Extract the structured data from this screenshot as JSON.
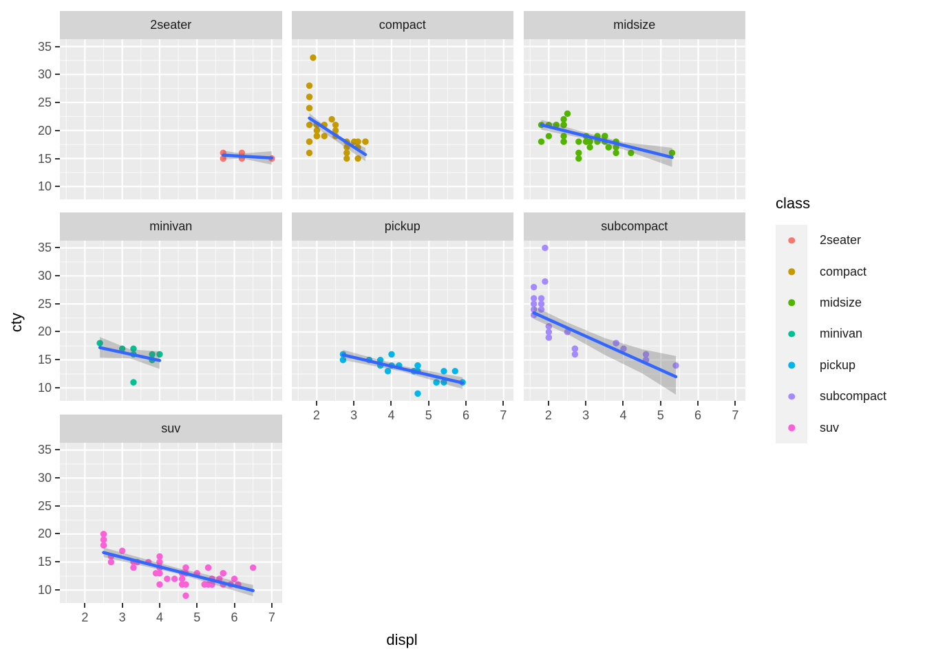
{
  "chart_data": {
    "type": "scatter",
    "title": "",
    "xlabel": "displ",
    "ylabel": "cty",
    "x_ticks": [
      2,
      3,
      4,
      5,
      6,
      7
    ],
    "y_ticks": [
      35,
      30,
      25,
      20,
      15,
      10
    ],
    "x_minor_ticks": [
      1.5,
      2.5,
      3.5,
      4.5,
      5.5,
      6.5
    ],
    "y_minor_ticks": [
      12.5,
      17.5,
      22.5,
      27.5,
      32.5
    ],
    "xlim": [
      1.33,
      7.27
    ],
    "ylim": [
      7.7,
      36.3
    ],
    "grid": "major+minor",
    "panel_background": "#ebebeb",
    "strip_background": "#d5d5d5",
    "smooth_line_color": "#3366ff",
    "ribbon_color": "rgba(105,105,105,0.32)",
    "legend": {
      "title": "class",
      "position": "right"
    },
    "facets": [
      {
        "label": "2seater",
        "color": "#F8766D",
        "points": [
          [
            5.7,
            16
          ],
          [
            5.7,
            15
          ],
          [
            6.2,
            16
          ],
          [
            6.2,
            15
          ],
          [
            7.0,
            15
          ]
        ],
        "line": {
          "x1": 5.7,
          "y1": 15.6,
          "x2": 7.0,
          "y2": 15.1
        },
        "ribbon": [
          [
            5.7,
            16.4
          ],
          [
            6.2,
            15.9
          ],
          [
            7.0,
            16.3
          ],
          [
            7.0,
            13.9
          ],
          [
            6.2,
            15.0
          ],
          [
            5.7,
            14.8
          ]
        ]
      },
      {
        "label": "compact",
        "color": "#C49A00",
        "points": [
          [
            1.8,
            18
          ],
          [
            1.8,
            21
          ],
          [
            2.0,
            20
          ],
          [
            2.0,
            21
          ],
          [
            2.8,
            16
          ],
          [
            2.8,
            18
          ],
          [
            3.1,
            18
          ],
          [
            1.8,
            18
          ],
          [
            1.8,
            16
          ],
          [
            2.0,
            20
          ],
          [
            2.0,
            19
          ],
          [
            2.8,
            15
          ],
          [
            2.8,
            17
          ],
          [
            3.1,
            17
          ],
          [
            3.1,
            15
          ],
          [
            2.2,
            21
          ],
          [
            2.2,
            19
          ],
          [
            2.5,
            20
          ],
          [
            2.5,
            19
          ],
          [
            1.8,
            26
          ],
          [
            1.8,
            28
          ],
          [
            1.8,
            26
          ],
          [
            1.8,
            24
          ],
          [
            1.8,
            24
          ],
          [
            2.0,
            21
          ],
          [
            2.0,
            19
          ],
          [
            2.0,
            21
          ],
          [
            2.8,
            16
          ],
          [
            1.9,
            33
          ],
          [
            2.0,
            21
          ],
          [
            2.0,
            19
          ],
          [
            2.0,
            21
          ],
          [
            2.5,
            21
          ],
          [
            2.2,
            21
          ],
          [
            2.4,
            22
          ],
          [
            3.0,
            18
          ],
          [
            3.3,
            18
          ],
          [
            3.3,
            18
          ]
        ],
        "line": {
          "x1": 1.8,
          "y1": 22.2,
          "x2": 3.3,
          "y2": 15.7
        },
        "ribbon": [
          [
            1.8,
            23.1
          ],
          [
            2.5,
            19.2
          ],
          [
            3.3,
            16.9
          ],
          [
            3.3,
            14.5
          ],
          [
            2.5,
            18.2
          ],
          [
            1.8,
            21.3
          ]
        ]
      },
      {
        "label": "midsize",
        "color": "#53B400",
        "points": [
          [
            1.8,
            21
          ],
          [
            1.8,
            18
          ],
          [
            2.0,
            19
          ],
          [
            2.0,
            21
          ],
          [
            2.8,
            16
          ],
          [
            2.8,
            18
          ],
          [
            3.6,
            17
          ],
          [
            2.8,
            15
          ],
          [
            3.1,
            17
          ],
          [
            4.2,
            16
          ],
          [
            2.4,
            19
          ],
          [
            2.4,
            22
          ],
          [
            3.1,
            18
          ],
          [
            3.5,
            18
          ],
          [
            3.6,
            17
          ],
          [
            2.4,
            18
          ],
          [
            2.4,
            18
          ],
          [
            2.4,
            21
          ],
          [
            3.3,
            19
          ],
          [
            3.3,
            18
          ],
          [
            2.4,
            21
          ],
          [
            2.5,
            23
          ],
          [
            2.5,
            23
          ],
          [
            3.5,
            19
          ],
          [
            3.5,
            19
          ],
          [
            3.0,
            18
          ],
          [
            3.0,
            19
          ],
          [
            3.5,
            19
          ],
          [
            3.1,
            18
          ],
          [
            3.8,
            17
          ],
          [
            3.8,
            16
          ],
          [
            3.8,
            18
          ],
          [
            5.3,
            16
          ],
          [
            2.2,
            21
          ],
          [
            2.2,
            21
          ],
          [
            2.4,
            21
          ],
          [
            2.4,
            21
          ],
          [
            3.0,
            18
          ],
          [
            3.0,
            18
          ],
          [
            3.5,
            19
          ]
        ],
        "line": {
          "x1": 1.8,
          "y1": 21.0,
          "x2": 5.3,
          "y2": 15.2
        },
        "ribbon": [
          [
            1.8,
            21.9
          ],
          [
            3.0,
            19.6
          ],
          [
            4.0,
            17.9
          ],
          [
            5.3,
            16.9
          ],
          [
            5.3,
            13.5
          ],
          [
            4.0,
            16.6
          ],
          [
            3.0,
            18.5
          ],
          [
            1.8,
            20.1
          ]
        ]
      },
      {
        "label": "minivan",
        "color": "#00C094",
        "points": [
          [
            2.4,
            18
          ],
          [
            3.0,
            17
          ],
          [
            3.3,
            17
          ],
          [
            3.3,
            16
          ],
          [
            3.3,
            11
          ],
          [
            3.8,
            15
          ],
          [
            3.8,
            15
          ],
          [
            3.8,
            16
          ],
          [
            4.0,
            16
          ]
        ],
        "line": {
          "x1": 2.4,
          "y1": 17.2,
          "x2": 4.0,
          "y2": 14.9
        },
        "ribbon": [
          [
            2.4,
            19.1
          ],
          [
            3.2,
            16.9
          ],
          [
            4.0,
            16.5
          ],
          [
            4.0,
            13.4
          ],
          [
            3.2,
            15.3
          ],
          [
            2.4,
            15.4
          ]
        ]
      },
      {
        "label": "pickup",
        "color": "#00B6EB",
        "points": [
          [
            3.7,
            15
          ],
          [
            3.7,
            14
          ],
          [
            3.9,
            13
          ],
          [
            3.9,
            13
          ],
          [
            4.7,
            14
          ],
          [
            4.7,
            14
          ],
          [
            4.7,
            9
          ],
          [
            5.2,
            11
          ],
          [
            5.2,
            11
          ],
          [
            4.7,
            13
          ],
          [
            4.7,
            13
          ],
          [
            5.7,
            13
          ],
          [
            5.9,
            11
          ],
          [
            4.2,
            14
          ],
          [
            4.2,
            14
          ],
          [
            4.6,
            13
          ],
          [
            4.6,
            13
          ],
          [
            4.6,
            13
          ],
          [
            5.4,
            13
          ],
          [
            5.4,
            11
          ],
          [
            2.7,
            15
          ],
          [
            2.7,
            16
          ],
          [
            2.7,
            15
          ],
          [
            3.4,
            15
          ],
          [
            3.4,
            15
          ],
          [
            4.0,
            16
          ],
          [
            4.0,
            14
          ]
        ],
        "line": {
          "x1": 2.7,
          "y1": 15.9,
          "x2": 5.9,
          "y2": 10.9
        },
        "ribbon": [
          [
            2.7,
            16.8
          ],
          [
            4.3,
            13.9
          ],
          [
            5.9,
            11.9
          ],
          [
            5.9,
            9.8
          ],
          [
            4.3,
            12.9
          ],
          [
            2.7,
            15.0
          ]
        ]
      },
      {
        "label": "subcompact",
        "color": "#A58AFF",
        "points": [
          [
            1.6,
            28
          ],
          [
            1.6,
            25
          ],
          [
            1.6,
            23
          ],
          [
            1.6,
            24
          ],
          [
            1.6,
            26
          ],
          [
            1.8,
            26
          ],
          [
            1.8,
            25
          ],
          [
            1.8,
            24
          ],
          [
            2.0,
            21
          ],
          [
            1.9,
            35
          ],
          [
            1.9,
            29
          ],
          [
            2.0,
            19
          ],
          [
            2.0,
            21
          ],
          [
            2.5,
            20
          ],
          [
            2.5,
            20
          ],
          [
            2.0,
            19
          ],
          [
            2.0,
            19
          ],
          [
            2.0,
            20
          ],
          [
            2.7,
            17
          ],
          [
            2.7,
            16
          ],
          [
            2.7,
            17
          ],
          [
            3.8,
            18
          ],
          [
            3.8,
            18
          ],
          [
            4.0,
            17
          ],
          [
            4.6,
            15
          ],
          [
            4.6,
            15
          ],
          [
            4.6,
            16
          ],
          [
            4.6,
            15
          ],
          [
            5.4,
            14
          ]
        ],
        "line": {
          "x1": 1.6,
          "y1": 23.4,
          "x2": 5.4,
          "y2": 12.0
        },
        "ribbon": [
          [
            1.6,
            24.6
          ],
          [
            2.5,
            21.7
          ],
          [
            3.5,
            18.9
          ],
          [
            4.5,
            16.9
          ],
          [
            5.4,
            15.7
          ],
          [
            5.4,
            8.8
          ],
          [
            4.5,
            12.6
          ],
          [
            3.5,
            15.9
          ],
          [
            2.5,
            19.6
          ],
          [
            1.6,
            22.3
          ]
        ]
      },
      {
        "label": "suv",
        "color": "#FB61D7",
        "points": [
          [
            5.3,
            14
          ],
          [
            5.3,
            11
          ],
          [
            5.3,
            14
          ],
          [
            5.7,
            13
          ],
          [
            6.0,
            12
          ],
          [
            5.3,
            14
          ],
          [
            5.3,
            11
          ],
          [
            5.7,
            11
          ],
          [
            6.5,
            14
          ],
          [
            3.9,
            13
          ],
          [
            4.7,
            13
          ],
          [
            4.7,
            9
          ],
          [
            4.7,
            13
          ],
          [
            5.2,
            11
          ],
          [
            5.9,
            11
          ],
          [
            4.6,
            11
          ],
          [
            5.4,
            11
          ],
          [
            5.4,
            12
          ],
          [
            4.0,
            15
          ],
          [
            4.0,
            13
          ],
          [
            4.0,
            13
          ],
          [
            4.0,
            14
          ],
          [
            4.6,
            13
          ],
          [
            5.0,
            13
          ],
          [
            3.0,
            17
          ],
          [
            3.7,
            15
          ],
          [
            4.0,
            15
          ],
          [
            4.7,
            14
          ],
          [
            4.7,
            14
          ],
          [
            5.7,
            13
          ],
          [
            6.1,
            11
          ],
          [
            4.0,
            11
          ],
          [
            4.2,
            12
          ],
          [
            4.4,
            12
          ],
          [
            4.6,
            12
          ],
          [
            5.4,
            11
          ],
          [
            5.4,
            11
          ],
          [
            5.4,
            12
          ],
          [
            4.0,
            14
          ],
          [
            4.0,
            13
          ],
          [
            4.6,
            13
          ],
          [
            5.0,
            13
          ],
          [
            3.3,
            14
          ],
          [
            3.3,
            15
          ],
          [
            4.0,
            14
          ],
          [
            5.6,
            12
          ],
          [
            2.5,
            18
          ],
          [
            2.5,
            18
          ],
          [
            2.5,
            20
          ],
          [
            2.5,
            19
          ],
          [
            2.5,
            20
          ],
          [
            2.5,
            19
          ],
          [
            2.7,
            15
          ],
          [
            2.7,
            16
          ],
          [
            3.4,
            15
          ],
          [
            3.4,
            15
          ],
          [
            4.0,
            16
          ],
          [
            4.7,
            14
          ],
          [
            4.7,
            11
          ],
          [
            5.7,
            13
          ]
        ],
        "line": {
          "x1": 2.5,
          "y1": 16.7,
          "x2": 6.5,
          "y2": 9.9
        },
        "ribbon": [
          [
            2.5,
            17.6
          ],
          [
            4.5,
            13.9
          ],
          [
            6.5,
            10.9
          ],
          [
            6.5,
            8.9
          ],
          [
            4.5,
            12.9
          ],
          [
            2.5,
            15.9
          ]
        ]
      }
    ]
  }
}
